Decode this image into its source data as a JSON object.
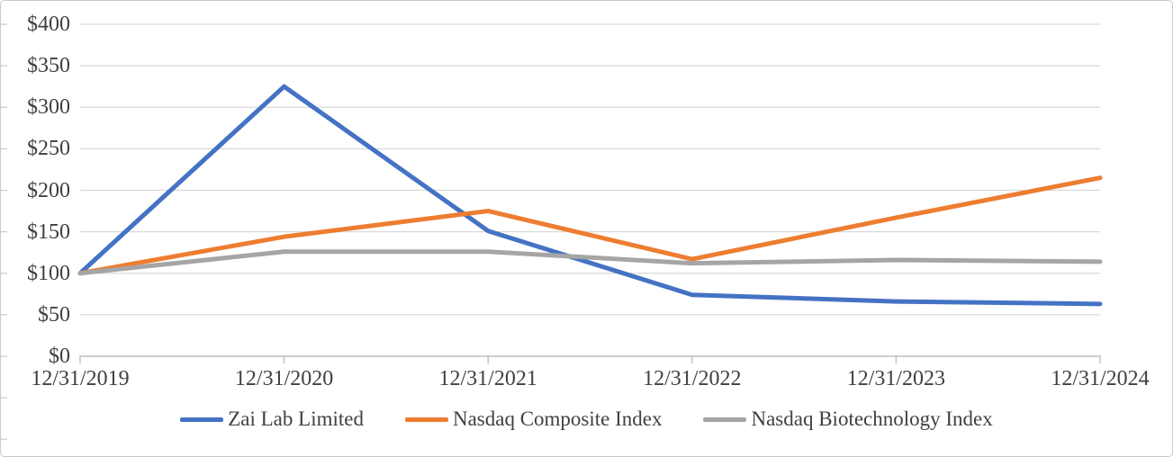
{
  "chart_data": {
    "type": "line",
    "title": "",
    "xlabel": "",
    "ylabel": "",
    "categories": [
      "12/31/2019",
      "12/31/2020",
      "12/31/2021",
      "12/31/2022",
      "12/31/2023",
      "12/31/2024"
    ],
    "series": [
      {
        "name": "Zai Lab Limited",
        "color": "#4472C4",
        "values": [
          100,
          325,
          151,
          74,
          66,
          63
        ]
      },
      {
        "name": "Nasdaq Composite Index",
        "color": "#ED7D31",
        "values": [
          100,
          144,
          175,
          117,
          167,
          215
        ]
      },
      {
        "name": "Nasdaq Biotechnology Index",
        "color": "#A5A5A5",
        "values": [
          100,
          126,
          126,
          112,
          116,
          114
        ]
      }
    ],
    "ylim": [
      0,
      400
    ],
    "ytick_step": 50,
    "ytick_labels": [
      "$0",
      "$50",
      "$100",
      "$150",
      "$200",
      "$250",
      "$300",
      "$350",
      "$400"
    ],
    "grid": true,
    "legend_position": "bottom"
  },
  "colors": {
    "gridline": "#D9D9D9",
    "axis_line": "#BFBFBF",
    "tick_mark": "#C9C9C9",
    "text": "#404040",
    "background": "#FFFFFF",
    "frame_border": "#C9C9C9"
  }
}
